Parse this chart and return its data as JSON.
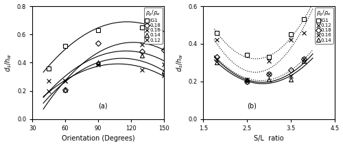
{
  "panel_a": {
    "xlabel": "Orientation (Degrees)",
    "ylabel": "d_s/h_w",
    "xlim": [
      30,
      150
    ],
    "ylim": [
      0,
      0.8
    ],
    "xticks": [
      30,
      60,
      90,
      120,
      150
    ],
    "yticks": [
      0,
      0.2,
      0.4,
      0.6,
      0.8
    ],
    "label": "(a)",
    "series": [
      {
        "name": "IG1",
        "marker": "s",
        "points_x": [
          45,
          60,
          90,
          130
        ],
        "points_y": [
          0.36,
          0.52,
          0.63,
          0.65
        ],
        "curve_x": [
          45,
          60,
          90,
          120,
          150
        ],
        "curve_y": [
          0.36,
          0.52,
          0.65,
          0.67,
          0.63
        ],
        "mfc": "white"
      },
      {
        "name": "0.18",
        "marker": "D",
        "points_x": [
          60,
          90,
          130,
          150
        ],
        "points_y": [
          0.21,
          0.54,
          0.48,
          0.49
        ],
        "curve_x": [
          40,
          60,
          90,
          120,
          150
        ],
        "curve_y": [
          0.1,
          0.21,
          0.52,
          0.53,
          0.49
        ],
        "mfc": "none"
      },
      {
        "name": "0.16",
        "marker": "x",
        "points_x": [
          45,
          60,
          90,
          130,
          150
        ],
        "points_y": [
          0.27,
          0.27,
          0.39,
          0.53,
          0.39
        ],
        "curve_x": [
          40,
          60,
          90,
          120,
          150
        ],
        "curve_y": [
          0.18,
          0.27,
          0.42,
          0.54,
          0.39
        ],
        "mfc": "none"
      },
      {
        "name": "0.14",
        "marker": "^",
        "points_x": [
          60,
          90,
          130,
          150
        ],
        "points_y": [
          0.21,
          0.4,
          0.45,
          0.34
        ],
        "curve_x": [
          40,
          60,
          90,
          120,
          150
        ],
        "curve_y": [
          0.14,
          0.22,
          0.41,
          0.45,
          0.33
        ],
        "mfc": "none"
      },
      {
        "name": "0.12",
        "marker": "x",
        "points_x": [
          45,
          60,
          90,
          130,
          150
        ],
        "points_y": [
          0.2,
          0.27,
          0.39,
          0.35,
          0.31
        ],
        "curve_x": [
          40,
          60,
          90,
          120,
          150
        ],
        "curve_y": [
          0.16,
          0.27,
          0.39,
          0.37,
          0.31
        ],
        "mfc": "none"
      }
    ],
    "legend_title": "rho_g/rho_w",
    "legend_labels": [
      "IG1",
      "0.18",
      "0.16",
      "0.14",
      "0.12"
    ],
    "legend_markers": [
      "s",
      "D",
      "x",
      "^",
      "x"
    ],
    "legend_mfc": [
      "white",
      "none",
      "none",
      "none",
      "none"
    ]
  },
  "panel_b": {
    "xlabel": "S/L  ratio",
    "ylabel": "d_s/h_w",
    "xlim": [
      1.5,
      4.5
    ],
    "ylim": [
      0,
      0.6
    ],
    "xticks": [
      1.5,
      2.5,
      3.5,
      4.5
    ],
    "yticks": [
      0,
      0.2,
      0.4,
      0.6
    ],
    "label": "(b)",
    "series": [
      {
        "name": "IG1",
        "marker": "s",
        "points_x": [
          1.8,
          2.5,
          3.0,
          3.5,
          3.8
        ],
        "points_y": [
          0.46,
          0.34,
          0.33,
          0.45,
          0.53
        ],
        "curve_x": [
          1.8,
          2.5,
          3.0,
          3.5,
          3.8
        ],
        "curve_y": [
          0.46,
          0.34,
          0.32,
          0.44,
          0.53
        ],
        "linestyle": "dotted",
        "mfc": "white"
      },
      {
        "name": "0.12",
        "marker": "x",
        "points_x": [
          1.8,
          2.5,
          3.0,
          3.5,
          3.8
        ],
        "points_y": [
          0.42,
          0.21,
          0.31,
          0.42,
          0.46
        ],
        "curve_x": [
          1.8,
          2.5,
          3.0,
          3.5,
          3.8
        ],
        "curve_y": [
          0.42,
          0.21,
          0.29,
          0.42,
          0.46
        ],
        "linestyle": "dotted",
        "mfc": "none"
      },
      {
        "name": "0.18",
        "marker": "D",
        "points_x": [
          1.8,
          2.5,
          3.0,
          3.5,
          3.8
        ],
        "points_y": [
          0.33,
          0.2,
          0.24,
          0.26,
          0.32
        ],
        "curve_x": [
          1.8,
          2.5,
          3.0,
          3.5,
          3.8
        ],
        "curve_y": [
          0.33,
          0.2,
          0.23,
          0.25,
          0.32
        ],
        "linestyle": "dotted",
        "mfc": "none"
      },
      {
        "name": "0.16",
        "marker": "x",
        "points_x": [
          1.8,
          2.5,
          3.0,
          3.5,
          3.8
        ],
        "points_y": [
          0.32,
          0.2,
          0.24,
          0.23,
          0.32
        ],
        "curve_x": [
          1.8,
          2.5,
          3.0,
          3.5,
          3.8
        ],
        "curve_y": [
          0.32,
          0.2,
          0.22,
          0.22,
          0.31
        ],
        "linestyle": "solid",
        "mfc": "none"
      },
      {
        "name": "0.14",
        "marker": "^",
        "points_x": [
          1.8,
          2.5,
          3.0,
          3.5,
          3.8
        ],
        "points_y": [
          0.3,
          0.21,
          0.21,
          0.21,
          0.31
        ],
        "curve_x": [
          1.8,
          2.5,
          3.0,
          3.5,
          3.8
        ],
        "curve_y": [
          0.3,
          0.21,
          0.2,
          0.2,
          0.3
        ],
        "linestyle": "solid",
        "mfc": "none"
      }
    ],
    "legend_title": "rho_g/rho_w",
    "legend_labels": [
      "IG1",
      "0.12",
      "0.18",
      "0.16",
      "0.14"
    ],
    "legend_markers": [
      "s",
      "x",
      "D",
      "x",
      "^"
    ],
    "legend_mfc": [
      "white",
      "none",
      "none",
      "none",
      "none"
    ]
  }
}
